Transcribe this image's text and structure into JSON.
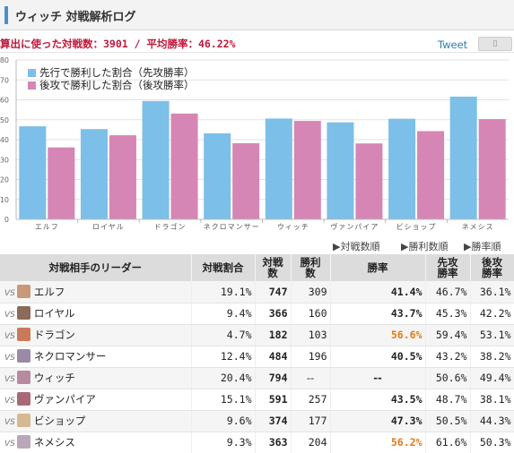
{
  "header": {
    "title": "ウィッチ 対戦解析ログ"
  },
  "summary": "算出に使った対戦数：3901 / 平均勝率：46.22%",
  "share": {
    "tweet_label": "Tweet",
    "icon": "page-icon"
  },
  "colors": {
    "first": "#7cbfe8",
    "second": "#d586b4",
    "accent": "#4a90c8",
    "highlight": "#e07a18"
  },
  "chart_data": {
    "type": "bar",
    "categories": [
      "エルフ",
      "ロイヤル",
      "ドラゴン",
      "ネクロマンサー",
      "ウィッチ",
      "ヴァンパイア",
      "ビショップ",
      "ネメシス"
    ],
    "series": [
      {
        "name": "先行で勝利した割合（先攻勝率）",
        "values": [
          46.7,
          45.3,
          59.4,
          43.2,
          50.6,
          48.7,
          50.5,
          61.6
        ]
      },
      {
        "name": "後攻で勝利した割合（後攻勝率）",
        "values": [
          36.1,
          42.2,
          53.1,
          38.2,
          49.4,
          38.1,
          44.3,
          50.3
        ]
      }
    ],
    "yticks": [
      "0",
      "10",
      "20",
      "30",
      "40",
      "50",
      "60",
      "70",
      "80"
    ],
    "ylim": [
      0,
      80
    ],
    "grid": true,
    "legend": "top-left"
  },
  "sort": {
    "by_matches": "▶対戦数順",
    "by_wins": "▶勝利数順",
    "by_rate": "▶勝率順"
  },
  "table": {
    "headers": {
      "leader": "対戦相手のリーダー",
      "share": "対戦割合",
      "matches": [
        "対戦",
        "数"
      ],
      "wins": [
        "勝利",
        "数"
      ],
      "rate": "勝率",
      "first": [
        "先攻",
        "勝率"
      ],
      "second": [
        "後攻",
        "勝率"
      ]
    },
    "vs_label": "VS",
    "rows": [
      {
        "leader": "エルフ",
        "share": "19.1%",
        "matches": "747",
        "wins": "309",
        "rate": "41.4%",
        "first": "46.7%",
        "second": "36.1%",
        "highlight": false,
        "avatar": "#c89878"
      },
      {
        "leader": "ロイヤル",
        "share": "9.4%",
        "matches": "366",
        "wins": "160",
        "rate": "43.7%",
        "first": "45.3%",
        "second": "42.2%",
        "highlight": false,
        "avatar": "#8a6a58"
      },
      {
        "leader": "ドラゴン",
        "share": "4.7%",
        "matches": "182",
        "wins": "103",
        "rate": "56.6%",
        "first": "59.4%",
        "second": "53.1%",
        "highlight": true,
        "avatar": "#c87a5a"
      },
      {
        "leader": "ネクロマンサー",
        "share": "12.4%",
        "matches": "484",
        "wins": "196",
        "rate": "40.5%",
        "first": "43.2%",
        "second": "38.2%",
        "highlight": false,
        "avatar": "#9a8aa8"
      },
      {
        "leader": "ウィッチ",
        "share": "20.4%",
        "matches": "794",
        "wins": "--",
        "rate": "--",
        "first": "50.6%",
        "second": "49.4%",
        "highlight": false,
        "avatar": "#b88aa0"
      },
      {
        "leader": "ヴァンパイア",
        "share": "15.1%",
        "matches": "591",
        "wins": "257",
        "rate": "43.5%",
        "first": "48.7%",
        "second": "38.1%",
        "highlight": false,
        "avatar": "#a86878"
      },
      {
        "leader": "ビショップ",
        "share": "9.6%",
        "matches": "374",
        "wins": "177",
        "rate": "47.3%",
        "first": "50.5%",
        "second": "44.3%",
        "highlight": false,
        "avatar": "#d8b890"
      },
      {
        "leader": "ネメシス",
        "share": "9.3%",
        "matches": "363",
        "wins": "204",
        "rate": "56.2%",
        "first": "61.6%",
        "second": "50.3%",
        "highlight": true,
        "avatar": "#b8a8b8"
      }
    ]
  }
}
